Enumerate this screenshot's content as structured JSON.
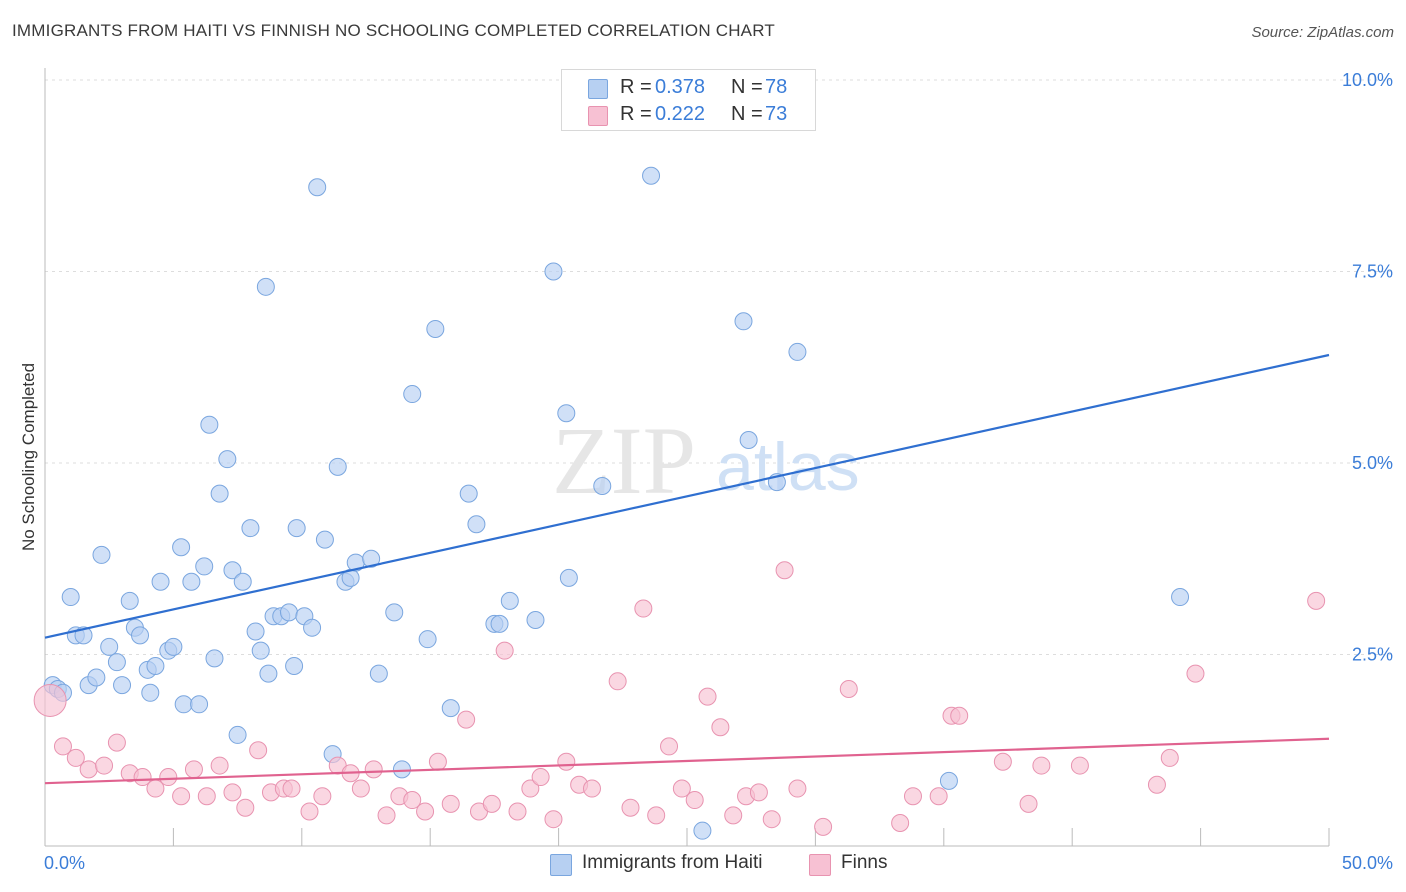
{
  "header": {
    "title": "IMMIGRANTS FROM HAITI VS FINNISH NO SCHOOLING COMPLETED CORRELATION CHART",
    "source": "Source: ZipAtlas.com"
  },
  "watermark": {
    "zip": "ZIP",
    "atlas": "atlas"
  },
  "legend": {
    "r_label": "R =",
    "n_label": "N =",
    "series": [
      {
        "r": "0.378",
        "n": "78",
        "color": "#a9c8f0"
      },
      {
        "r": "0.222",
        "n": "73",
        "color": "#f6b3c8"
      }
    ]
  },
  "colors": {
    "blue_fill": "#b7d0f2",
    "blue_stroke": "#7aa6df",
    "blue_line": "#2f6fd0",
    "pink_fill": "#f7c1d3",
    "pink_stroke": "#e893b0",
    "pink_line": "#e0628f",
    "tick_label": "#3b7dd8",
    "grid": "#dddddd"
  },
  "chart_data": {
    "type": "scatter",
    "title": "IMMIGRANTS FROM HAITI VS FINNISH NO SCHOOLING COMPLETED CORRELATION CHART",
    "xlabel": "",
    "ylabel": "No Schooling Completed",
    "xlim": [
      0,
      50
    ],
    "ylim": [
      0,
      10.5
    ],
    "x_tick_labels": [
      "0.0%",
      "50.0%"
    ],
    "y_ticks": [
      2.5,
      5.0,
      7.5,
      10.0
    ],
    "y_tick_labels": [
      "2.5%",
      "5.0%",
      "7.5%",
      "10.0%"
    ],
    "grid": true,
    "legend_position": "top-center",
    "series": [
      {
        "name": "Immigrants from Haiti",
        "trend": {
          "x": [
            0,
            50
          ],
          "y": [
            2.72,
            6.41
          ]
        },
        "points": [
          [
            0.3,
            2.1
          ],
          [
            0.5,
            2.05
          ],
          [
            0.7,
            2.0
          ],
          [
            1.0,
            3.25
          ],
          [
            1.2,
            2.75
          ],
          [
            1.5,
            2.75
          ],
          [
            1.7,
            2.1
          ],
          [
            2.0,
            2.2
          ],
          [
            2.2,
            3.8
          ],
          [
            2.5,
            2.6
          ],
          [
            2.8,
            2.4
          ],
          [
            3.0,
            2.1
          ],
          [
            3.3,
            3.2
          ],
          [
            3.5,
            2.85
          ],
          [
            3.7,
            2.75
          ],
          [
            4.0,
            2.3
          ],
          [
            4.1,
            2.0
          ],
          [
            4.3,
            2.35
          ],
          [
            4.5,
            3.45
          ],
          [
            4.8,
            2.55
          ],
          [
            5.0,
            2.6
          ],
          [
            5.3,
            3.9
          ],
          [
            5.4,
            1.85
          ],
          [
            5.7,
            3.45
          ],
          [
            6.0,
            1.85
          ],
          [
            6.2,
            3.65
          ],
          [
            6.4,
            5.5
          ],
          [
            6.6,
            2.45
          ],
          [
            6.8,
            4.6
          ],
          [
            7.1,
            5.05
          ],
          [
            7.3,
            3.6
          ],
          [
            7.5,
            1.45
          ],
          [
            7.7,
            3.45
          ],
          [
            8.0,
            4.15
          ],
          [
            8.2,
            2.8
          ],
          [
            8.4,
            2.55
          ],
          [
            8.6,
            7.3
          ],
          [
            8.7,
            2.25
          ],
          [
            8.9,
            3.0
          ],
          [
            9.2,
            3.0
          ],
          [
            9.5,
            3.05
          ],
          [
            9.7,
            2.35
          ],
          [
            9.8,
            4.15
          ],
          [
            10.1,
            3.0
          ],
          [
            10.4,
            2.85
          ],
          [
            10.6,
            8.6
          ],
          [
            10.9,
            4.0
          ],
          [
            11.2,
            1.2
          ],
          [
            11.4,
            4.95
          ],
          [
            11.7,
            3.45
          ],
          [
            11.9,
            3.5
          ],
          [
            12.1,
            3.7
          ],
          [
            12.7,
            3.75
          ],
          [
            13.0,
            2.25
          ],
          [
            13.6,
            3.05
          ],
          [
            13.9,
            1.0
          ],
          [
            14.3,
            5.9
          ],
          [
            14.9,
            2.7
          ],
          [
            15.2,
            6.75
          ],
          [
            15.8,
            1.8
          ],
          [
            16.5,
            4.6
          ],
          [
            16.8,
            4.2
          ],
          [
            17.5,
            2.9
          ],
          [
            17.7,
            2.9
          ],
          [
            18.1,
            3.2
          ],
          [
            19.1,
            2.95
          ],
          [
            19.8,
            7.5
          ],
          [
            20.3,
            5.65
          ],
          [
            20.4,
            3.5
          ],
          [
            21.7,
            4.7
          ],
          [
            23.6,
            8.75
          ],
          [
            25.6,
            0.2
          ],
          [
            27.2,
            6.85
          ],
          [
            27.4,
            5.3
          ],
          [
            28.5,
            4.75
          ],
          [
            29.3,
            6.45
          ],
          [
            35.2,
            0.85
          ],
          [
            44.2,
            3.25
          ]
        ]
      },
      {
        "name": "Finns",
        "trend": {
          "x": [
            0,
            50
          ],
          "y": [
            0.82,
            1.4
          ]
        },
        "points": [
          [
            0.2,
            1.9
          ],
          [
            0.7,
            1.3
          ],
          [
            1.2,
            1.15
          ],
          [
            1.7,
            1.0
          ],
          [
            2.3,
            1.05
          ],
          [
            2.8,
            1.35
          ],
          [
            3.3,
            0.95
          ],
          [
            3.8,
            0.9
          ],
          [
            4.3,
            0.75
          ],
          [
            4.8,
            0.9
          ],
          [
            5.3,
            0.65
          ],
          [
            5.8,
            1.0
          ],
          [
            6.3,
            0.65
          ],
          [
            6.8,
            1.05
          ],
          [
            7.3,
            0.7
          ],
          [
            7.8,
            0.5
          ],
          [
            8.3,
            1.25
          ],
          [
            8.8,
            0.7
          ],
          [
            9.3,
            0.75
          ],
          [
            9.6,
            0.75
          ],
          [
            10.3,
            0.45
          ],
          [
            10.8,
            0.65
          ],
          [
            11.4,
            1.05
          ],
          [
            11.9,
            0.95
          ],
          [
            12.3,
            0.75
          ],
          [
            12.8,
            1.0
          ],
          [
            13.3,
            0.4
          ],
          [
            13.8,
            0.65
          ],
          [
            14.3,
            0.6
          ],
          [
            14.8,
            0.45
          ],
          [
            15.3,
            1.1
          ],
          [
            15.8,
            0.55
          ],
          [
            16.4,
            1.65
          ],
          [
            16.9,
            0.45
          ],
          [
            17.4,
            0.55
          ],
          [
            17.9,
            2.55
          ],
          [
            18.4,
            0.45
          ],
          [
            18.9,
            0.75
          ],
          [
            19.3,
            0.9
          ],
          [
            19.8,
            0.35
          ],
          [
            20.3,
            1.1
          ],
          [
            20.8,
            0.8
          ],
          [
            21.3,
            0.75
          ],
          [
            22.3,
            2.15
          ],
          [
            22.8,
            0.5
          ],
          [
            23.3,
            3.1
          ],
          [
            23.8,
            0.4
          ],
          [
            24.3,
            1.3
          ],
          [
            24.8,
            0.75
          ],
          [
            25.3,
            0.6
          ],
          [
            25.8,
            1.95
          ],
          [
            26.3,
            1.55
          ],
          [
            26.8,
            0.4
          ],
          [
            27.3,
            0.65
          ],
          [
            27.8,
            0.7
          ],
          [
            28.3,
            0.35
          ],
          [
            28.8,
            3.6
          ],
          [
            29.3,
            0.75
          ],
          [
            30.3,
            0.25
          ],
          [
            31.3,
            2.05
          ],
          [
            33.3,
            0.3
          ],
          [
            33.8,
            0.65
          ],
          [
            34.8,
            0.65
          ],
          [
            35.3,
            1.7
          ],
          [
            35.6,
            1.7
          ],
          [
            37.3,
            1.1
          ],
          [
            38.3,
            0.55
          ],
          [
            38.8,
            1.05
          ],
          [
            40.3,
            1.05
          ],
          [
            43.3,
            0.8
          ],
          [
            43.8,
            1.15
          ],
          [
            44.8,
            2.25
          ],
          [
            49.5,
            3.2
          ]
        ]
      }
    ]
  }
}
